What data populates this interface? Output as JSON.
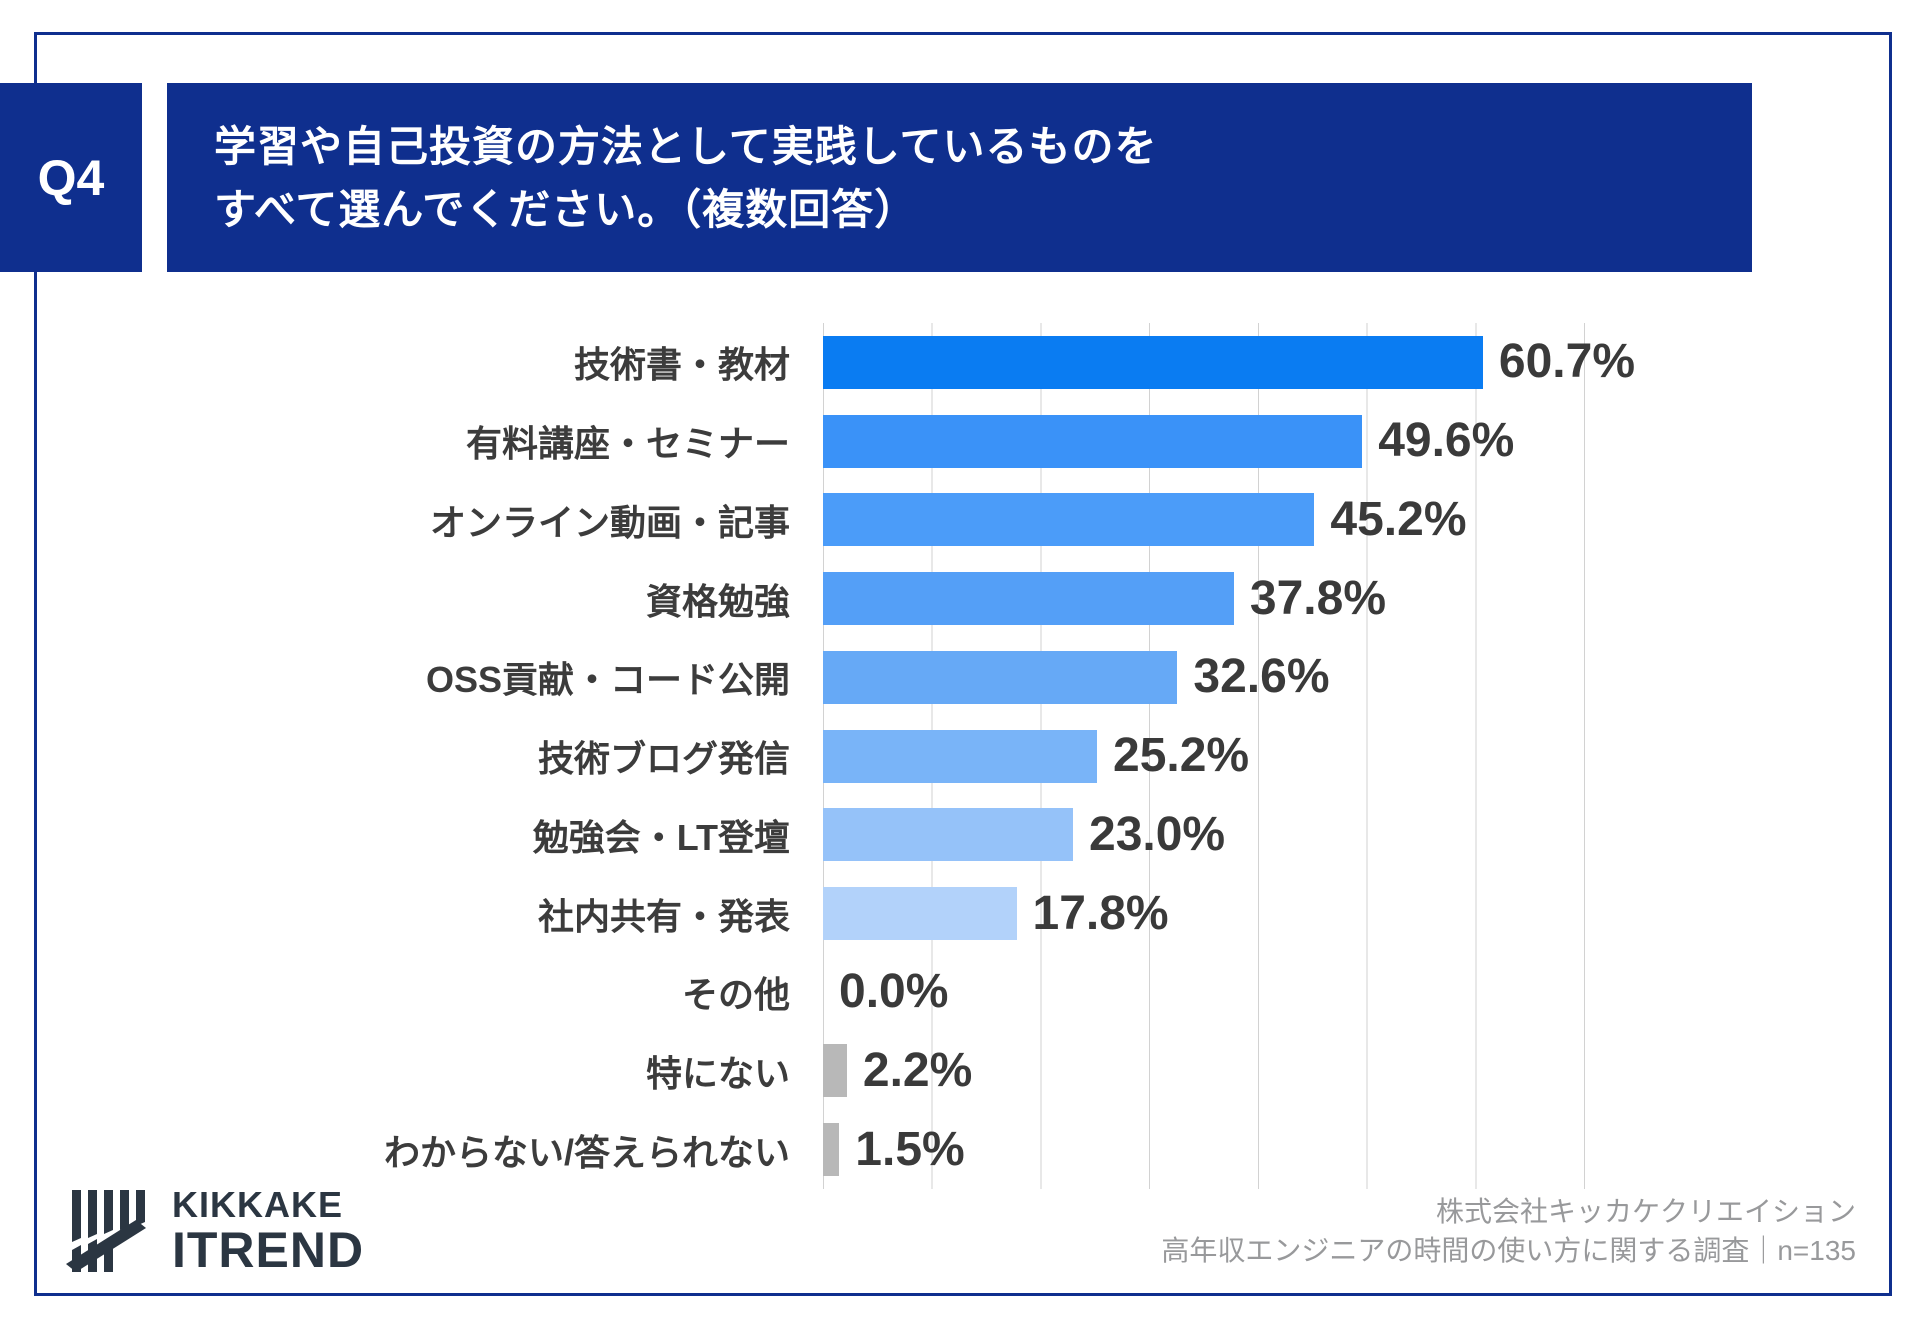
{
  "question": {
    "tag": "Q4",
    "title_line1": "学習や自己投資の方法として実践しているものを",
    "title_line2": "すべて選んでください。（複数回答）"
  },
  "chart_data": {
    "type": "bar",
    "orientation": "horizontal",
    "title": "学習や自己投資の方法として実践しているものをすべて選んでください。（複数回答）",
    "categories": [
      "技術書・教材",
      "有料講座・セミナー",
      "オンライン動画・記事",
      "資格勉強",
      "OSS貢献・コード公開",
      "技術ブログ発信",
      "勉強会・LT登壇",
      "社内共有・発表",
      "その他",
      "特にない",
      "わからない/答えられない"
    ],
    "values": [
      60.7,
      49.6,
      45.2,
      37.8,
      32.6,
      25.2,
      23.0,
      17.8,
      0.0,
      2.2,
      1.5
    ],
    "value_labels": [
      "60.7%",
      "49.6%",
      "45.2%",
      "37.8%",
      "32.6%",
      "25.2%",
      "23.0%",
      "17.8%",
      "0.0%",
      "2.2%",
      "1.5%"
    ],
    "xlabel": "",
    "ylabel": "",
    "xlim": [
      0,
      70
    ],
    "grid": true,
    "x_gridlines_percent": [
      0,
      10,
      20,
      30,
      40,
      50,
      60,
      70
    ],
    "legend": "none",
    "bar_colors": [
      "#0a7cf2",
      "#3a92f8",
      "#4b9cf9",
      "#549ff7",
      "#66a9f6",
      "#79b4f8",
      "#95c2f9",
      "#b2d2fa",
      "#b8b8b8",
      "#b8b8b8",
      "#b8b8b8"
    ]
  },
  "footer": {
    "logo_line1": "KIKKAKE",
    "logo_line2": "ITREND",
    "credit_line1": "株式会社キッカケクリエイション",
    "credit_line2": "高年収エンジニアの時間の使い方に関する調査｜n=135"
  },
  "colors": {
    "navy": "#0f2f8e",
    "grid": "#d2d2d2",
    "label": "#3c3c3c",
    "value": "#3a3a3a",
    "gray_bar": "#b8b8b8",
    "credit": "#98999b",
    "logo": "#2b3642"
  }
}
